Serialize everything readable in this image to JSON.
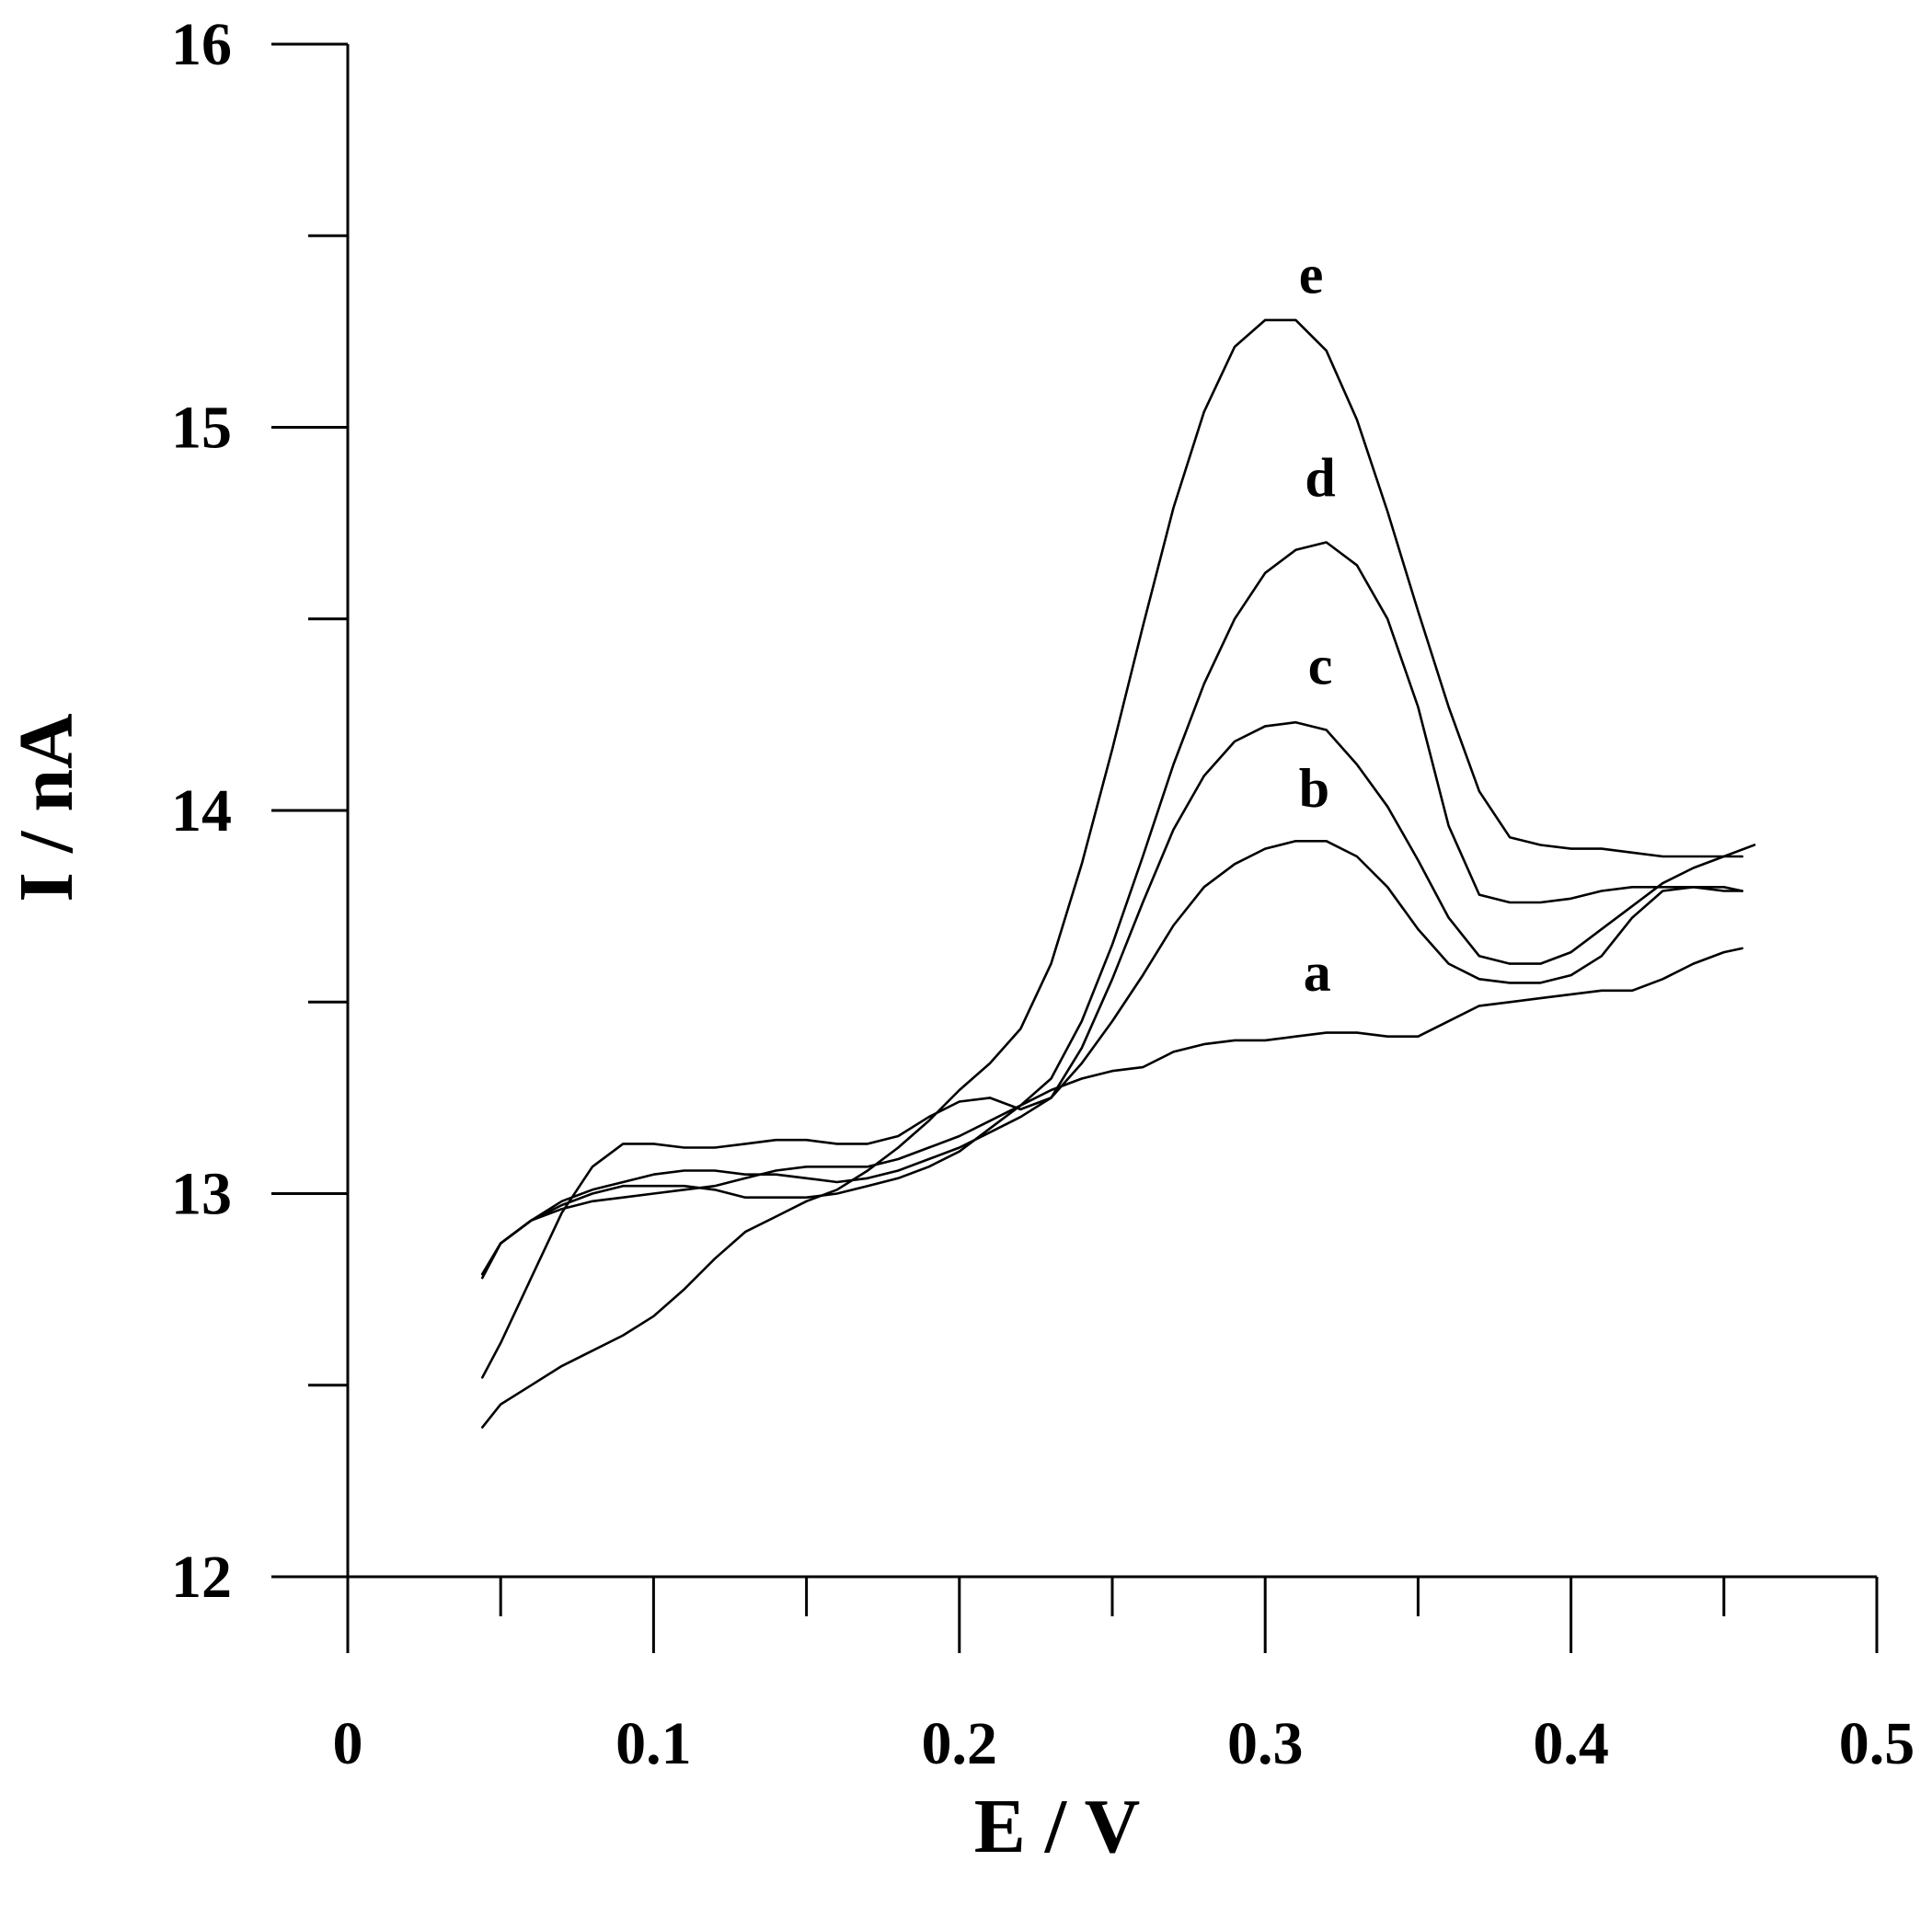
{
  "chart_data": {
    "type": "line",
    "xlabel": "E / V",
    "ylabel": "I / nA",
    "xlim": [
      0,
      0.5
    ],
    "ylim": [
      12,
      16
    ],
    "x_ticks": [
      0,
      0.1,
      0.2,
      0.3,
      0.4,
      0.5
    ],
    "x_tick_labels": [
      "0",
      "0.1",
      "0.2",
      "0.3",
      "0.4",
      "0.5"
    ],
    "x_minor_ticks": [
      0.05,
      0.15,
      0.25,
      0.35,
      0.45
    ],
    "y_ticks": [
      12,
      13,
      14,
      15,
      16
    ],
    "y_tick_labels": [
      "12",
      "13",
      "14",
      "15",
      "16"
    ],
    "y_minor_ticks": [
      12.5,
      13.5,
      14.5,
      15.5
    ],
    "grid": false,
    "legend": "none",
    "series": [
      {
        "name": "a",
        "label_at": [
          0.317,
          13.53
        ],
        "x": [
          0.044,
          0.05,
          0.06,
          0.07,
          0.08,
          0.09,
          0.1,
          0.11,
          0.12,
          0.13,
          0.14,
          0.15,
          0.16,
          0.17,
          0.18,
          0.19,
          0.2,
          0.21,
          0.22,
          0.23,
          0.24,
          0.25,
          0.26,
          0.27,
          0.28,
          0.29,
          0.3,
          0.31,
          0.32,
          0.33,
          0.34,
          0.35,
          0.36,
          0.37,
          0.38,
          0.39,
          0.4,
          0.41,
          0.42,
          0.43,
          0.44,
          0.45,
          0.456
        ],
        "y": [
          12.79,
          12.87,
          12.93,
          12.96,
          12.98,
          12.99,
          13.0,
          13.01,
          13.02,
          13.04,
          13.06,
          13.07,
          13.07,
          13.07,
          13.09,
          13.12,
          13.15,
          13.19,
          13.23,
          13.27,
          13.3,
          13.32,
          13.33,
          13.37,
          13.39,
          13.4,
          13.4,
          13.41,
          13.42,
          13.42,
          13.41,
          13.41,
          13.45,
          13.49,
          13.5,
          13.51,
          13.52,
          13.53,
          13.53,
          13.56,
          13.6,
          13.63,
          13.64
        ]
      },
      {
        "name": "b",
        "label_at": [
          0.316,
          14.01
        ],
        "x": [
          0.044,
          0.05,
          0.06,
          0.07,
          0.08,
          0.09,
          0.1,
          0.11,
          0.12,
          0.13,
          0.14,
          0.15,
          0.16,
          0.17,
          0.18,
          0.19,
          0.2,
          0.21,
          0.22,
          0.23,
          0.24,
          0.25,
          0.26,
          0.27,
          0.28,
          0.29,
          0.3,
          0.31,
          0.32,
          0.33,
          0.34,
          0.35,
          0.36,
          0.37,
          0.38,
          0.39,
          0.4,
          0.41,
          0.42,
          0.43,
          0.44,
          0.45,
          0.456
        ],
        "y": [
          12.79,
          12.87,
          12.93,
          12.98,
          13.01,
          13.03,
          13.05,
          13.06,
          13.06,
          13.05,
          13.05,
          13.04,
          13.03,
          13.04,
          13.06,
          13.09,
          13.12,
          13.16,
          13.2,
          13.25,
          13.34,
          13.45,
          13.57,
          13.7,
          13.8,
          13.86,
          13.9,
          13.92,
          13.92,
          13.88,
          13.8,
          13.69,
          13.6,
          13.56,
          13.55,
          13.55,
          13.57,
          13.62,
          13.72,
          13.79,
          13.8,
          13.8,
          13.79
        ]
      },
      {
        "name": "c",
        "label_at": [
          0.318,
          14.33
        ],
        "x": [
          0.044,
          0.05,
          0.06,
          0.07,
          0.08,
          0.09,
          0.1,
          0.11,
          0.12,
          0.13,
          0.14,
          0.15,
          0.16,
          0.17,
          0.18,
          0.19,
          0.2,
          0.21,
          0.22,
          0.23,
          0.24,
          0.25,
          0.26,
          0.27,
          0.28,
          0.29,
          0.3,
          0.31,
          0.32,
          0.33,
          0.34,
          0.35,
          0.36,
          0.37,
          0.38,
          0.39,
          0.4,
          0.41,
          0.42,
          0.43,
          0.44,
          0.45,
          0.46
        ],
        "y": [
          12.52,
          12.61,
          12.78,
          12.95,
          13.07,
          13.13,
          13.13,
          13.12,
          13.12,
          13.13,
          13.14,
          13.14,
          13.13,
          13.13,
          13.15,
          13.2,
          13.24,
          13.25,
          13.22,
          13.25,
          13.38,
          13.56,
          13.76,
          13.95,
          14.09,
          14.18,
          14.22,
          14.23,
          14.21,
          14.12,
          14.01,
          13.87,
          13.72,
          13.62,
          13.6,
          13.6,
          13.63,
          13.69,
          13.75,
          13.81,
          13.85,
          13.88,
          13.91
        ]
      },
      {
        "name": "d",
        "label_at": [
          0.318,
          14.82
        ],
        "x": [
          0.044,
          0.05,
          0.06,
          0.07,
          0.08,
          0.09,
          0.1,
          0.11,
          0.12,
          0.13,
          0.14,
          0.15,
          0.16,
          0.17,
          0.18,
          0.19,
          0.2,
          0.21,
          0.22,
          0.23,
          0.24,
          0.25,
          0.26,
          0.27,
          0.28,
          0.29,
          0.3,
          0.31,
          0.32,
          0.33,
          0.34,
          0.35,
          0.36,
          0.37,
          0.38,
          0.39,
          0.4,
          0.41,
          0.42,
          0.43,
          0.44,
          0.45,
          0.456
        ],
        "y": [
          12.78,
          12.87,
          12.93,
          12.97,
          13.0,
          13.02,
          13.02,
          13.02,
          13.01,
          12.99,
          12.99,
          12.99,
          13.0,
          13.02,
          13.04,
          13.07,
          13.11,
          13.17,
          13.23,
          13.3,
          13.45,
          13.65,
          13.88,
          14.12,
          14.33,
          14.5,
          14.62,
          14.68,
          14.7,
          14.64,
          14.5,
          14.27,
          13.96,
          13.78,
          13.76,
          13.76,
          13.77,
          13.79,
          13.8,
          13.8,
          13.8,
          13.79,
          13.79
        ]
      },
      {
        "name": "e",
        "label_at": [
          0.315,
          15.35
        ],
        "x": [
          0.044,
          0.05,
          0.06,
          0.07,
          0.08,
          0.09,
          0.1,
          0.11,
          0.12,
          0.13,
          0.14,
          0.15,
          0.16,
          0.17,
          0.18,
          0.19,
          0.2,
          0.21,
          0.22,
          0.23,
          0.24,
          0.25,
          0.26,
          0.27,
          0.28,
          0.29,
          0.3,
          0.31,
          0.32,
          0.33,
          0.34,
          0.35,
          0.36,
          0.37,
          0.38,
          0.39,
          0.4,
          0.41,
          0.42,
          0.43,
          0.44,
          0.45,
          0.456
        ],
        "y": [
          12.39,
          12.45,
          12.5,
          12.55,
          12.59,
          12.63,
          12.68,
          12.75,
          12.83,
          12.9,
          12.94,
          12.98,
          13.01,
          13.06,
          13.12,
          13.19,
          13.27,
          13.34,
          13.43,
          13.6,
          13.86,
          14.16,
          14.48,
          14.79,
          15.04,
          15.21,
          15.28,
          15.28,
          15.2,
          15.02,
          14.78,
          14.52,
          14.27,
          14.05,
          13.93,
          13.91,
          13.9,
          13.9,
          13.89,
          13.88,
          13.88,
          13.88,
          13.88
        ]
      }
    ]
  }
}
